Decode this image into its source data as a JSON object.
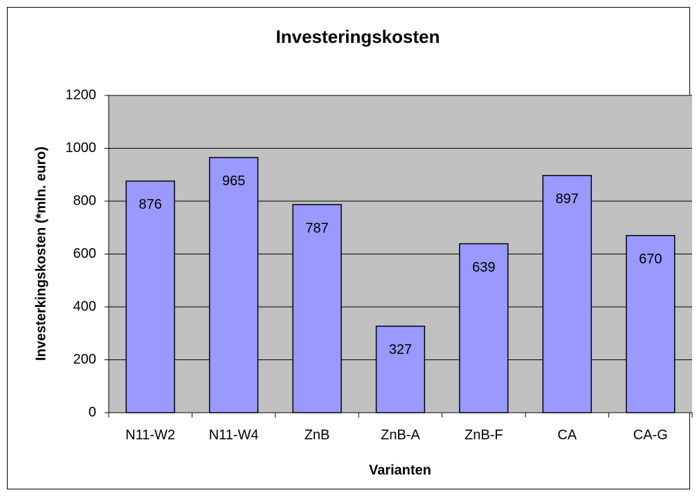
{
  "chart_data": {
    "type": "bar",
    "title": "Investeringskosten",
    "xlabel": "Varianten",
    "ylabel": "Investerkingskosten (*mln. euro)",
    "categories": [
      "N11-W2",
      "N11-W4",
      "ZnB",
      "ZnB-A",
      "ZnB-F",
      "CA",
      "CA-G"
    ],
    "values": [
      876,
      965,
      787,
      327,
      639,
      897,
      670
    ],
    "color": "#9999ff",
    "ylim": [
      0,
      1200
    ],
    "yticks": [
      0,
      200,
      400,
      600,
      800,
      1000,
      1200
    ],
    "grid": true,
    "data_labels": true
  }
}
